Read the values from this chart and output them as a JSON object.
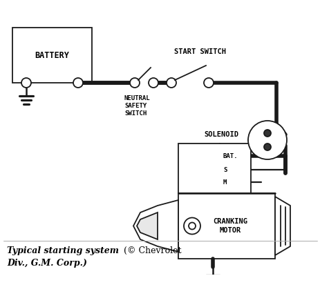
{
  "bg_color": "#ffffff",
  "line_color": "#1a1a1a",
  "lw_thick": 4.0,
  "lw_thin": 1.3,
  "title_bold": "Typical starting system",
  "title_normal": " (© Chevrolet",
  "subtitle": "Div., G.M. Corp.)",
  "labels": {
    "battery": "BATTERY",
    "start_switch": "START SWITCH",
    "neutral_safety": "NEUTRAL\nSAFETY\nSWITCH",
    "solenoid": "SOLENOID",
    "bat": "BAT.",
    "s": "S",
    "m": "M",
    "cranking_motor": "CRANKING\nMOTOR"
  },
  "figsize": [
    4.64,
    4.16
  ],
  "dpi": 100
}
